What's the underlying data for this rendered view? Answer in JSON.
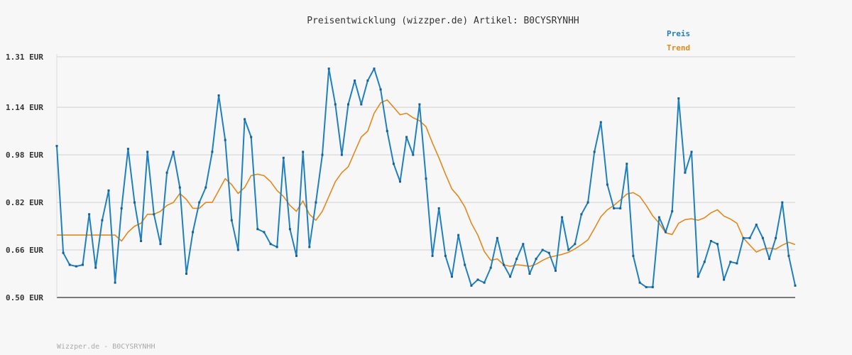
{
  "chart_data": {
    "type": "line",
    "title": "Preisentwicklung (wizzper.de) Artikel: B0CYSRYNHH",
    "xlabel": "",
    "ylabel": "",
    "ylim": [
      0.5,
      1.31
    ],
    "yticks": [
      0.5,
      0.66,
      0.82,
      0.98,
      1.14,
      1.31
    ],
    "ytick_labels": [
      "0.50 EUR",
      "0.66 EUR",
      "0.82 EUR",
      "0.98 EUR",
      "1.14 EUR",
      "1.31 EUR"
    ],
    "grid": true,
    "legend_position": "top-right",
    "series": [
      {
        "name": "Preis",
        "color": "#1f7fbf",
        "values": [
          1.01,
          0.65,
          0.61,
          0.605,
          0.61,
          0.78,
          0.6,
          0.76,
          0.86,
          0.55,
          0.8,
          1.0,
          0.82,
          0.69,
          0.99,
          0.78,
          0.68,
          0.92,
          0.99,
          0.87,
          0.58,
          0.72,
          0.82,
          0.87,
          0.99,
          1.18,
          1.03,
          0.76,
          0.66,
          1.1,
          1.04,
          0.73,
          0.72,
          0.68,
          0.67,
          0.97,
          0.73,
          0.64,
          0.99,
          0.67,
          0.82,
          0.98,
          1.27,
          1.15,
          0.98,
          1.15,
          1.23,
          1.15,
          1.23,
          1.27,
          1.2,
          1.06,
          0.95,
          0.89,
          1.04,
          0.98,
          1.15,
          0.9,
          0.64,
          0.8,
          0.64,
          0.57,
          0.71,
          0.61,
          0.54,
          0.56,
          0.55,
          0.6,
          0.7,
          0.61,
          0.57,
          0.63,
          0.68,
          0.58,
          0.63,
          0.66,
          0.65,
          0.59,
          0.77,
          0.66,
          0.68,
          0.78,
          0.82,
          0.99,
          1.09,
          0.88,
          0.8,
          0.8,
          0.95,
          0.64,
          0.55,
          0.535,
          0.535,
          0.77,
          0.72,
          0.79,
          1.17,
          0.92,
          0.99,
          0.57,
          0.62,
          0.69,
          0.68,
          0.56,
          0.62,
          0.615,
          0.7,
          0.7,
          0.745,
          0.7,
          0.63,
          0.7,
          0.82,
          0.64,
          0.54
        ]
      },
      {
        "name": "Trend",
        "color": "#e08a1e",
        "values": [
          0.71,
          0.71,
          0.71,
          0.71,
          0.71,
          0.71,
          0.71,
          0.71,
          0.71,
          0.71,
          0.69,
          0.72,
          0.74,
          0.75,
          0.78,
          0.78,
          0.79,
          0.81,
          0.82,
          0.85,
          0.83,
          0.8,
          0.8,
          0.82,
          0.82,
          0.86,
          0.9,
          0.88,
          0.85,
          0.87,
          0.91,
          0.915,
          0.91,
          0.89,
          0.86,
          0.84,
          0.81,
          0.79,
          0.825,
          0.78,
          0.76,
          0.79,
          0.84,
          0.89,
          0.92,
          0.94,
          0.99,
          1.04,
          1.06,
          1.12,
          1.155,
          1.165,
          1.14,
          1.115,
          1.12,
          1.105,
          1.095,
          1.075,
          1.02,
          0.97,
          0.915,
          0.865,
          0.84,
          0.805,
          0.75,
          0.71,
          0.655,
          0.625,
          0.63,
          0.61,
          0.605,
          0.61,
          0.608,
          0.605,
          0.612,
          0.625,
          0.635,
          0.64,
          0.645,
          0.652,
          0.664,
          0.678,
          0.694,
          0.732,
          0.772,
          0.795,
          0.81,
          0.828,
          0.848,
          0.853,
          0.84,
          0.81,
          0.775,
          0.75,
          0.718,
          0.712,
          0.75,
          0.762,
          0.765,
          0.76,
          0.768,
          0.785,
          0.795,
          0.774,
          0.764,
          0.75,
          0.7,
          0.676,
          0.653,
          0.663,
          0.666,
          0.663,
          0.676,
          0.686,
          0.678
        ]
      }
    ],
    "footer": "Wizzper.de - B0CYSRYNHH"
  }
}
